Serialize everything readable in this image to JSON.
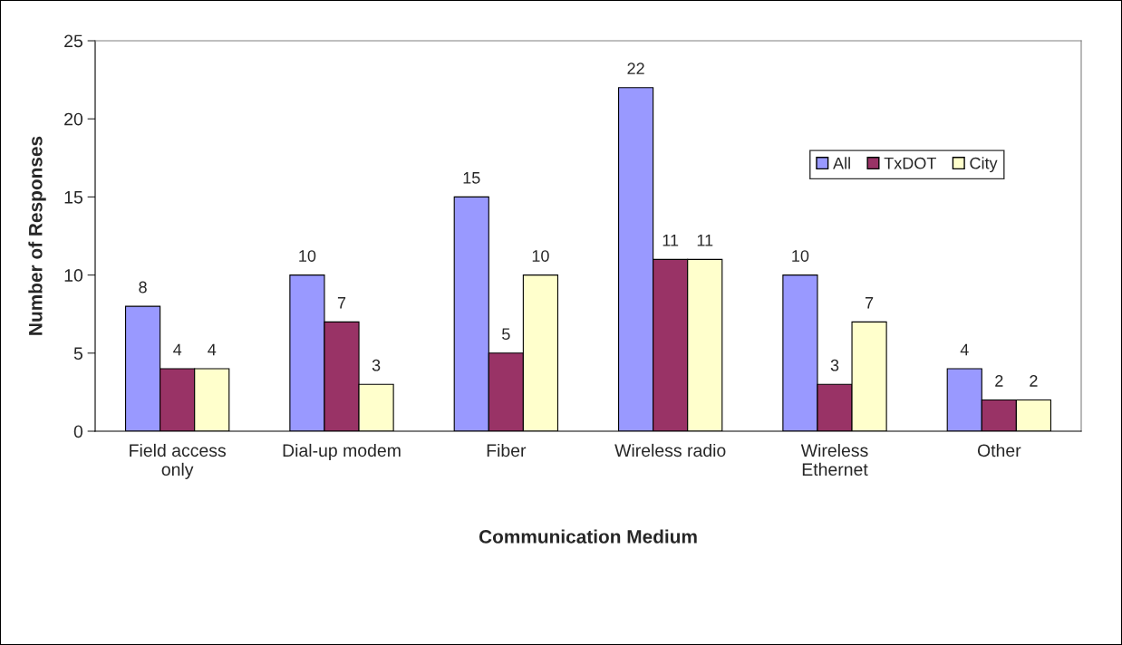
{
  "chart_data": {
    "type": "bar",
    "xlabel": "Communication Medium",
    "ylabel": "Number of Responses",
    "categories": [
      "Field access\nonly",
      "Dial-up modem",
      "Fiber",
      "Wireless radio",
      "Wireless\nEthernet",
      "Other"
    ],
    "series": [
      {
        "name": "All",
        "color": "#9999ff",
        "values": [
          8,
          10,
          15,
          22,
          10,
          4
        ]
      },
      {
        "name": "TxDOT",
        "color": "#993366",
        "values": [
          4,
          7,
          5,
          11,
          3,
          2
        ]
      },
      {
        "name": "City",
        "color": "#ffffcc",
        "values": [
          4,
          3,
          10,
          11,
          7,
          2
        ]
      }
    ],
    "ylim": [
      0,
      25
    ],
    "yticks": [
      0,
      5,
      10,
      15,
      20,
      25
    ],
    "data_labels": true,
    "grid": false,
    "legend": "top right"
  }
}
